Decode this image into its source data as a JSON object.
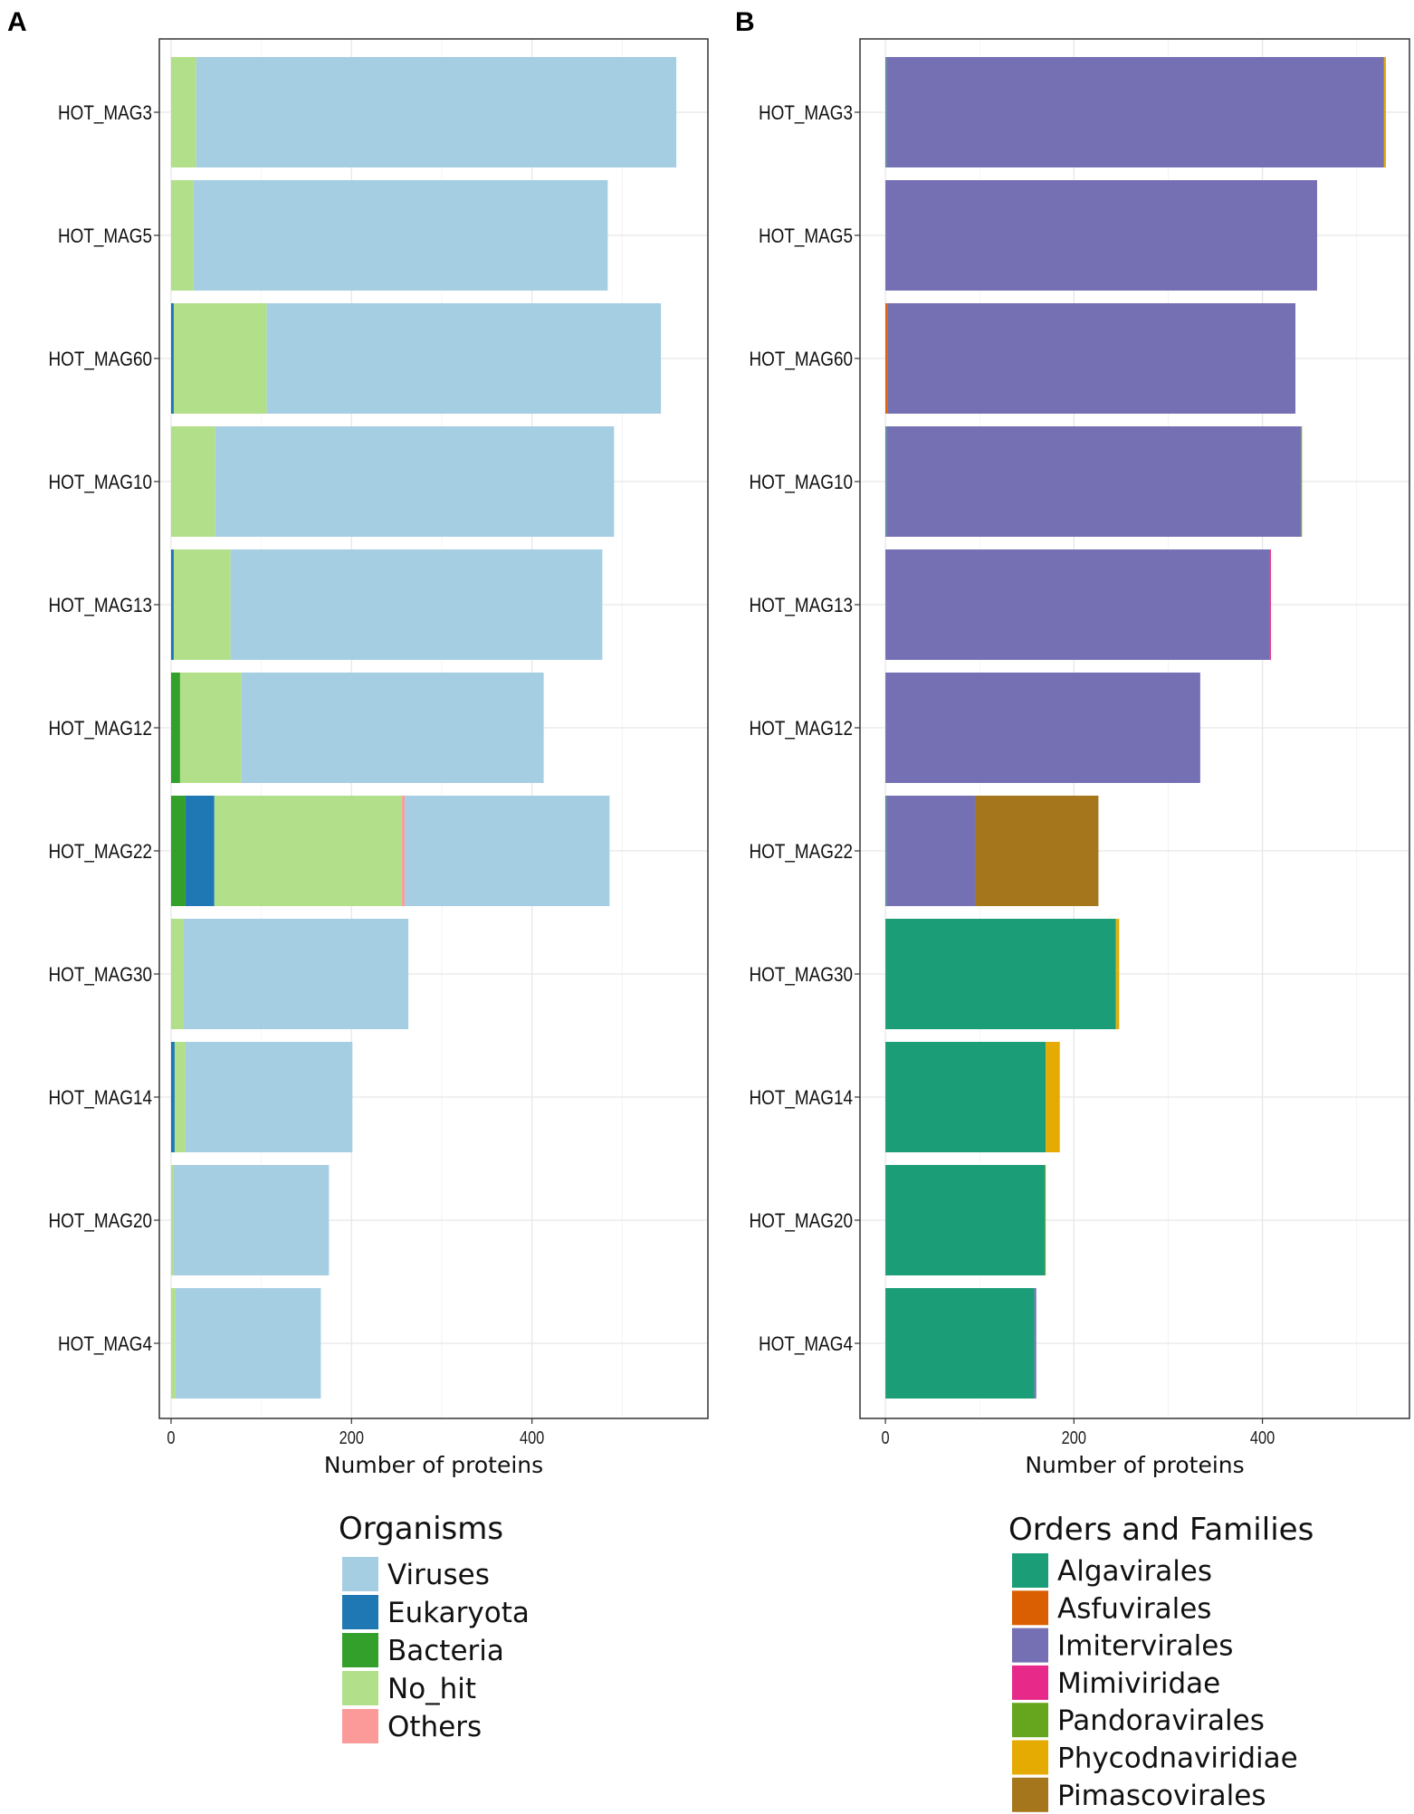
{
  "chart_data": [
    {
      "panel": "A",
      "type": "bar",
      "orientation": "horizontal",
      "stacked": true,
      "xlabel": "Number of proteins",
      "ylabel": "",
      "xlim": [
        -13,
        595
      ],
      "xticks": [
        0,
        200,
        400
      ],
      "categories": [
        "HOT_MAG3",
        "HOT_MAG5",
        "HOT_MAG60",
        "HOT_MAG10",
        "HOT_MAG13",
        "HOT_MAG12",
        "HOT_MAG22",
        "HOT_MAG30",
        "HOT_MAG14",
        "HOT_MAG20",
        "HOT_MAG4"
      ],
      "series": [
        {
          "name": "Bacteria",
          "color": "#33a02c",
          "values": [
            0,
            0,
            0,
            0,
            0,
            10,
            16,
            0,
            0,
            0,
            0
          ]
        },
        {
          "name": "Eukaryota",
          "color": "#1f78b4",
          "values": [
            0,
            0,
            3,
            0,
            3,
            0,
            32,
            0,
            4,
            0,
            0
          ]
        },
        {
          "name": "No_hit",
          "color": "#b2df8a",
          "values": [
            28,
            25,
            103,
            49,
            63,
            68,
            208,
            14,
            12,
            3,
            5
          ]
        },
        {
          "name": "Others",
          "color": "#fb9a99",
          "values": [
            0,
            0,
            0,
            0,
            0,
            0,
            3,
            0,
            0,
            0,
            0
          ]
        },
        {
          "name": "Viruses",
          "color": "#a6cee3",
          "values": [
            532,
            459,
            437,
            442,
            412,
            335,
            227,
            249,
            185,
            172,
            161
          ]
        }
      ],
      "legend": {
        "title": "Organisms",
        "entries": [
          {
            "label": "Viruses",
            "color": "#a6cee3"
          },
          {
            "label": "Eukaryota",
            "color": "#1f78b4"
          },
          {
            "label": "Bacteria",
            "color": "#33a02c"
          },
          {
            "label": "No_hit",
            "color": "#b2df8a"
          },
          {
            "label": "Others",
            "color": "#fb9a99"
          }
        ]
      }
    },
    {
      "panel": "B",
      "type": "bar",
      "orientation": "horizontal",
      "stacked": true,
      "xlabel": "Number of proteins",
      "ylabel": "",
      "xlim": [
        -27,
        556
      ],
      "xticks": [
        0,
        200,
        400
      ],
      "categories": [
        "HOT_MAG3",
        "HOT_MAG5",
        "HOT_MAG60",
        "HOT_MAG10",
        "HOT_MAG13",
        "HOT_MAG12",
        "HOT_MAG22",
        "HOT_MAG30",
        "HOT_MAG14",
        "HOT_MAG20",
        "HOT_MAG4"
      ],
      "series": [
        {
          "name": "Algavirales",
          "color": "#1b9e77",
          "values": [
            1,
            0,
            0,
            1,
            0,
            0,
            1,
            244,
            170,
            169,
            158
          ]
        },
        {
          "name": "Asfuvirales",
          "color": "#d95f02",
          "values": [
            0,
            0,
            2,
            0,
            0,
            0,
            0,
            0,
            0,
            0,
            0
          ]
        },
        {
          "name": "Imitervirales",
          "color": "#7570b3",
          "values": [
            528,
            458,
            433,
            440,
            408,
            334,
            94,
            0,
            0,
            0,
            2
          ]
        },
        {
          "name": "Mimiviridae",
          "color": "#e7298a",
          "values": [
            0,
            0,
            0,
            0,
            1,
            0,
            0,
            0,
            0,
            0,
            0
          ]
        },
        {
          "name": "Pandoravirales",
          "color": "#66a61e",
          "values": [
            0,
            0,
            0,
            1,
            0,
            0,
            0,
            1,
            0,
            1,
            0
          ]
        },
        {
          "name": "Phycodnaviridiae",
          "color": "#e6ab02",
          "values": [
            2,
            0,
            0,
            0,
            0,
            0,
            0,
            3,
            15,
            0,
            0
          ]
        },
        {
          "name": "Pimascovirales",
          "color": "#a6761d",
          "values": [
            0,
            0,
            0,
            0,
            0,
            0,
            131,
            0,
            0,
            0,
            0
          ]
        }
      ],
      "legend": {
        "title": "Orders and Families",
        "entries": [
          {
            "label": "Algavirales",
            "color": "#1b9e77"
          },
          {
            "label": "Asfuvirales",
            "color": "#d95f02"
          },
          {
            "label": "Imitervirales",
            "color": "#7570b3"
          },
          {
            "label": "Mimiviridae",
            "color": "#e7298a"
          },
          {
            "label": "Pandoravirales",
            "color": "#66a61e"
          },
          {
            "label": "Phycodnaviridiae",
            "color": "#e6ab02"
          },
          {
            "label": "Pimascovirales",
            "color": "#a6761d"
          }
        ]
      }
    }
  ]
}
